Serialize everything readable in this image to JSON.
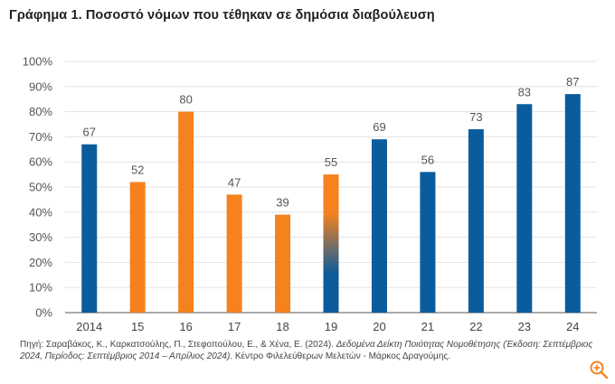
{
  "title": "Γράφημα 1. Ποσοστό νόμων που τέθηκαν σε δημόσια διαβούλευση",
  "source": {
    "prefix": "Πηγή: Σαραβάκος, Κ., Καρκατσούλης, Π., Στεφοπούλου, Ε., & Χένα, Ε. (2024). ",
    "italic": "Δεδομένα Δείκτη Ποιότητας Νομοθέτησης (Έκδοση: Σεπτέμβριος 2024, Περίοδος: Σεπτέμβριος 2014 – Απρίλιος 2024)",
    "suffix": ". Κέντρο Φιλελεύθερων Μελετών - Μάρκος Δραγούμης."
  },
  "zoom_icon": "zoom-in-icon",
  "colors": {
    "blue": "#0b5c9c",
    "orange": "#f5821f",
    "grid": "#e3e3e3",
    "axis": "#555555"
  },
  "chart_data": {
    "type": "bar",
    "title": "Γράφημα 1. Ποσοστό νόμων που τέθηκαν σε δημόσια διαβούλευση",
    "xlabel": "",
    "ylabel": "",
    "categories": [
      "2014",
      "15",
      "16",
      "17",
      "18",
      "19",
      "20",
      "21",
      "22",
      "23",
      "24"
    ],
    "values": [
      67,
      52,
      80,
      47,
      39,
      55,
      69,
      56,
      73,
      83,
      87
    ],
    "bar_colors": [
      "blue",
      "orange",
      "orange",
      "orange",
      "orange",
      "orange-blue-gradient",
      "blue",
      "blue",
      "blue",
      "blue",
      "blue"
    ],
    "ylim": [
      0,
      100
    ],
    "yticks": [
      "0%",
      "10%",
      "20%",
      "30%",
      "40%",
      "50%",
      "60%",
      "70%",
      "80%",
      "90%",
      "100%"
    ],
    "grid": true,
    "legend": "none"
  }
}
